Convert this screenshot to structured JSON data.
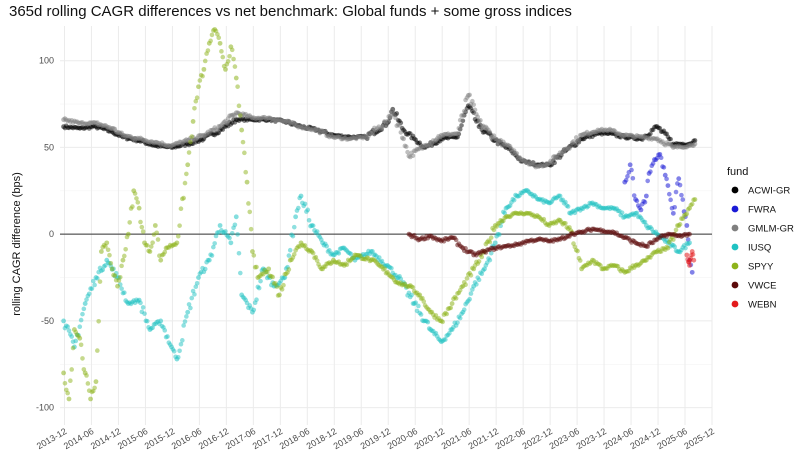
{
  "chart_data": {
    "type": "scatter",
    "title": "365d rolling CAGR differences vs net benchmark: Global funds + some gross indices",
    "xlabel": "",
    "ylabel": "rolling CAGR difference (bps)",
    "ylim": [
      -110,
      120
    ],
    "yticks": [
      -100,
      -50,
      0,
      50,
      100
    ],
    "xlim": [
      "2013-11",
      "2025-12"
    ],
    "xticks": [
      "2013-12",
      "2014-06",
      "2014-12",
      "2015-06",
      "2015-12",
      "2016-06",
      "2016-12",
      "2017-06",
      "2017-12",
      "2018-06",
      "2018-12",
      "2019-06",
      "2019-12",
      "2020-06",
      "2020-12",
      "2021-06",
      "2021-12",
      "2022-06",
      "2022-12",
      "2023-06",
      "2023-12",
      "2024-06",
      "2024-12",
      "2025-06",
      "2025-12"
    ],
    "hline": 0,
    "legend": {
      "title": "fund",
      "position": "right"
    },
    "series": [
      {
        "name": "ACWI-GR",
        "color": "#000000",
        "points": [
          [
            2013.9,
            62
          ],
          [
            2014.2,
            61
          ],
          [
            2014.5,
            62
          ],
          [
            2014.8,
            59
          ],
          [
            2015.0,
            56
          ],
          [
            2015.3,
            54
          ],
          [
            2015.6,
            51
          ],
          [
            2015.9,
            50
          ],
          [
            2016.2,
            52
          ],
          [
            2016.5,
            55
          ],
          [
            2016.8,
            60
          ],
          [
            2017.1,
            66
          ],
          [
            2017.4,
            66
          ],
          [
            2017.7,
            66
          ],
          [
            2018.0,
            65
          ],
          [
            2018.3,
            62
          ],
          [
            2018.6,
            60
          ],
          [
            2018.9,
            57
          ],
          [
            2019.2,
            56
          ],
          [
            2019.5,
            56
          ],
          [
            2019.9,
            64
          ],
          [
            2020.0,
            72
          ],
          [
            2020.2,
            60
          ],
          [
            2020.4,
            55
          ],
          [
            2020.6,
            50
          ],
          [
            2020.9,
            55
          ],
          [
            2021.2,
            56
          ],
          [
            2021.4,
            74
          ],
          [
            2021.6,
            62
          ],
          [
            2021.9,
            54
          ],
          [
            2022.2,
            48
          ],
          [
            2022.4,
            42
          ],
          [
            2022.7,
            40
          ],
          [
            2022.9,
            40
          ],
          [
            2023.2,
            48
          ],
          [
            2023.5,
            55
          ],
          [
            2023.8,
            58
          ],
          [
            2024.0,
            58
          ],
          [
            2024.3,
            56
          ],
          [
            2024.6,
            55
          ],
          [
            2024.9,
            62
          ],
          [
            2025.2,
            52
          ],
          [
            2025.5,
            52
          ],
          [
            2025.6,
            54
          ]
        ]
      },
      {
        "name": "FWRA",
        "color": "#1a1ad6",
        "points": [
          [
            2024.3,
            30
          ],
          [
            2024.4,
            40
          ],
          [
            2024.5,
            20
          ],
          [
            2024.6,
            14
          ],
          [
            2024.7,
            22
          ],
          [
            2024.75,
            35
          ],
          [
            2024.85,
            43
          ],
          [
            2024.95,
            46
          ],
          [
            2025.05,
            34
          ],
          [
            2025.1,
            28
          ],
          [
            2025.2,
            12
          ],
          [
            2025.3,
            32
          ],
          [
            2025.4,
            13
          ],
          [
            2025.45,
            5
          ],
          [
            2025.5,
            -15
          ],
          [
            2025.55,
            -22
          ]
        ]
      },
      {
        "name": "GMLM-GR",
        "color": "#7f7f7f",
        "points": [
          [
            2013.9,
            66
          ],
          [
            2014.2,
            64
          ],
          [
            2014.5,
            64
          ],
          [
            2014.8,
            61
          ],
          [
            2015.0,
            57
          ],
          [
            2015.3,
            55
          ],
          [
            2015.6,
            53
          ],
          [
            2015.9,
            51
          ],
          [
            2016.2,
            54
          ],
          [
            2016.5,
            57
          ],
          [
            2016.8,
            62
          ],
          [
            2017.1,
            70
          ],
          [
            2017.4,
            67
          ],
          [
            2017.7,
            67
          ],
          [
            2018.0,
            65
          ],
          [
            2018.3,
            62
          ],
          [
            2018.6,
            60
          ],
          [
            2018.9,
            56
          ],
          [
            2019.2,
            55
          ],
          [
            2019.5,
            56
          ],
          [
            2019.9,
            65
          ],
          [
            2020.0,
            71
          ],
          [
            2020.2,
            55
          ],
          [
            2020.3,
            45
          ],
          [
            2020.6,
            51
          ],
          [
            2020.9,
            57
          ],
          [
            2021.2,
            58
          ],
          [
            2021.4,
            80
          ],
          [
            2021.6,
            65
          ],
          [
            2021.9,
            55
          ],
          [
            2022.2,
            49
          ],
          [
            2022.4,
            43
          ],
          [
            2022.7,
            39
          ],
          [
            2022.9,
            41
          ],
          [
            2023.2,
            49
          ],
          [
            2023.5,
            57
          ],
          [
            2023.8,
            60
          ],
          [
            2024.0,
            60
          ],
          [
            2024.3,
            57
          ],
          [
            2024.6,
            56
          ],
          [
            2024.9,
            55
          ],
          [
            2025.2,
            50
          ],
          [
            2025.5,
            51
          ],
          [
            2025.6,
            52
          ]
        ]
      },
      {
        "name": "IUSQ",
        "color": "#1fc2c2",
        "points": [
          [
            2013.9,
            -50
          ],
          [
            2014.1,
            -65
          ],
          [
            2014.3,
            -40
          ],
          [
            2014.5,
            -25
          ],
          [
            2014.7,
            -15
          ],
          [
            2014.9,
            -25
          ],
          [
            2015.1,
            -40
          ],
          [
            2015.3,
            -38
          ],
          [
            2015.5,
            -55
          ],
          [
            2015.7,
            -50
          ],
          [
            2015.9,
            -65
          ],
          [
            2016.0,
            -72
          ],
          [
            2016.2,
            -45
          ],
          [
            2016.4,
            -25
          ],
          [
            2016.6,
            -15
          ],
          [
            2016.8,
            5
          ],
          [
            2017.0,
            -5
          ],
          [
            2017.1,
            10
          ],
          [
            2017.2,
            -35
          ],
          [
            2017.4,
            -45
          ],
          [
            2017.6,
            -20
          ],
          [
            2017.8,
            -30
          ],
          [
            2018.0,
            -25
          ],
          [
            2018.2,
            10
          ],
          [
            2018.3,
            22
          ],
          [
            2018.5,
            5
          ],
          [
            2018.7,
            -5
          ],
          [
            2018.9,
            -12
          ],
          [
            2019.1,
            -8
          ],
          [
            2019.3,
            -15
          ],
          [
            2019.6,
            -10
          ],
          [
            2019.9,
            -18
          ],
          [
            2020.1,
            -25
          ],
          [
            2020.4,
            -40
          ],
          [
            2020.7,
            -55
          ],
          [
            2020.9,
            -62
          ],
          [
            2021.1,
            -55
          ],
          [
            2021.3,
            -45
          ],
          [
            2021.5,
            -30
          ],
          [
            2021.7,
            -20
          ],
          [
            2021.9,
            -5
          ],
          [
            2022.1,
            15
          ],
          [
            2022.3,
            22
          ],
          [
            2022.5,
            25
          ],
          [
            2022.7,
            20
          ],
          [
            2022.9,
            18
          ],
          [
            2023.1,
            22
          ],
          [
            2023.3,
            12
          ],
          [
            2023.5,
            15
          ],
          [
            2023.7,
            18
          ],
          [
            2023.9,
            15
          ],
          [
            2024.1,
            15
          ],
          [
            2024.3,
            10
          ],
          [
            2024.5,
            12
          ],
          [
            2024.7,
            5
          ],
          [
            2024.9,
            0
          ],
          [
            2025.1,
            -5
          ],
          [
            2025.3,
            -10
          ],
          [
            2025.5,
            -5
          ]
        ]
      },
      {
        "name": "SPYY",
        "color": "#8db31b",
        "points": [
          [
            2013.9,
            -80
          ],
          [
            2014.0,
            -95
          ],
          [
            2014.1,
            -55
          ],
          [
            2014.2,
            -60
          ],
          [
            2014.3,
            -80
          ],
          [
            2014.4,
            -95
          ],
          [
            2014.5,
            -85
          ],
          [
            2014.6,
            -10
          ],
          [
            2014.7,
            -5
          ],
          [
            2014.8,
            -20
          ],
          [
            2014.9,
            -30
          ],
          [
            2015.0,
            -15
          ],
          [
            2015.1,
            0
          ],
          [
            2015.2,
            25
          ],
          [
            2015.3,
            15
          ],
          [
            2015.4,
            -5
          ],
          [
            2015.5,
            -10
          ],
          [
            2015.6,
            5
          ],
          [
            2015.7,
            -15
          ],
          [
            2015.8,
            -8
          ],
          [
            2016.0,
            -5
          ],
          [
            2016.2,
            40
          ],
          [
            2016.3,
            65
          ],
          [
            2016.4,
            85
          ],
          [
            2016.5,
            95
          ],
          [
            2016.6,
            110
          ],
          [
            2016.7,
            118
          ],
          [
            2016.8,
            110
          ],
          [
            2016.9,
            95
          ],
          [
            2017.0,
            108
          ],
          [
            2017.1,
            90
          ],
          [
            2017.2,
            60
          ],
          [
            2017.3,
            30
          ],
          [
            2017.4,
            -10
          ],
          [
            2017.5,
            -25
          ],
          [
            2017.7,
            -20
          ],
          [
            2017.9,
            -35
          ],
          [
            2018.1,
            -15
          ],
          [
            2018.3,
            -5
          ],
          [
            2018.5,
            -10
          ],
          [
            2018.7,
            -20
          ],
          [
            2018.9,
            -15
          ],
          [
            2019.1,
            -18
          ],
          [
            2019.3,
            -12
          ],
          [
            2019.6,
            -15
          ],
          [
            2019.9,
            -22
          ],
          [
            2020.1,
            -28
          ],
          [
            2020.3,
            -30
          ],
          [
            2020.5,
            -35
          ],
          [
            2020.7,
            -45
          ],
          [
            2020.9,
            -50
          ],
          [
            2021.1,
            -40
          ],
          [
            2021.3,
            -30
          ],
          [
            2021.5,
            -20
          ],
          [
            2021.7,
            -10
          ],
          [
            2021.9,
            5
          ],
          [
            2022.1,
            10
          ],
          [
            2022.3,
            12
          ],
          [
            2022.5,
            12
          ],
          [
            2022.7,
            10
          ],
          [
            2022.9,
            5
          ],
          [
            2023.1,
            8
          ],
          [
            2023.3,
            2
          ],
          [
            2023.5,
            -20
          ],
          [
            2023.7,
            -15
          ],
          [
            2023.9,
            -20
          ],
          [
            2024.1,
            -18
          ],
          [
            2024.3,
            -22
          ],
          [
            2024.5,
            -18
          ],
          [
            2024.7,
            -15
          ],
          [
            2024.9,
            -10
          ],
          [
            2025.1,
            -8
          ],
          [
            2025.3,
            5
          ],
          [
            2025.5,
            15
          ],
          [
            2025.6,
            20
          ]
        ]
      },
      {
        "name": "VWCE",
        "color": "#5c0a0a",
        "points": [
          [
            2020.3,
            0
          ],
          [
            2020.5,
            -3
          ],
          [
            2020.7,
            -1
          ],
          [
            2020.9,
            -4
          ],
          [
            2021.1,
            -2
          ],
          [
            2021.3,
            -8
          ],
          [
            2021.5,
            -12
          ],
          [
            2021.7,
            -10
          ],
          [
            2021.9,
            -8
          ],
          [
            2022.1,
            -7
          ],
          [
            2022.3,
            -6
          ],
          [
            2022.5,
            -4
          ],
          [
            2022.7,
            -3
          ],
          [
            2022.9,
            -4
          ],
          [
            2023.1,
            -3
          ],
          [
            2023.3,
            0
          ],
          [
            2023.5,
            1
          ],
          [
            2023.7,
            3
          ],
          [
            2023.9,
            2
          ],
          [
            2024.1,
            1
          ],
          [
            2024.3,
            -2
          ],
          [
            2024.5,
            -5
          ],
          [
            2024.7,
            -7
          ],
          [
            2024.9,
            -3
          ],
          [
            2025.1,
            0
          ],
          [
            2025.3,
            -1
          ],
          [
            2025.5,
            0
          ]
        ]
      },
      {
        "name": "WEBN",
        "color": "#e31a1c",
        "points": [
          [
            2025.45,
            -12
          ],
          [
            2025.48,
            -16
          ],
          [
            2025.5,
            -18
          ],
          [
            2025.52,
            -14
          ],
          [
            2025.55,
            -10
          ],
          [
            2025.58,
            -15
          ]
        ]
      }
    ]
  }
}
